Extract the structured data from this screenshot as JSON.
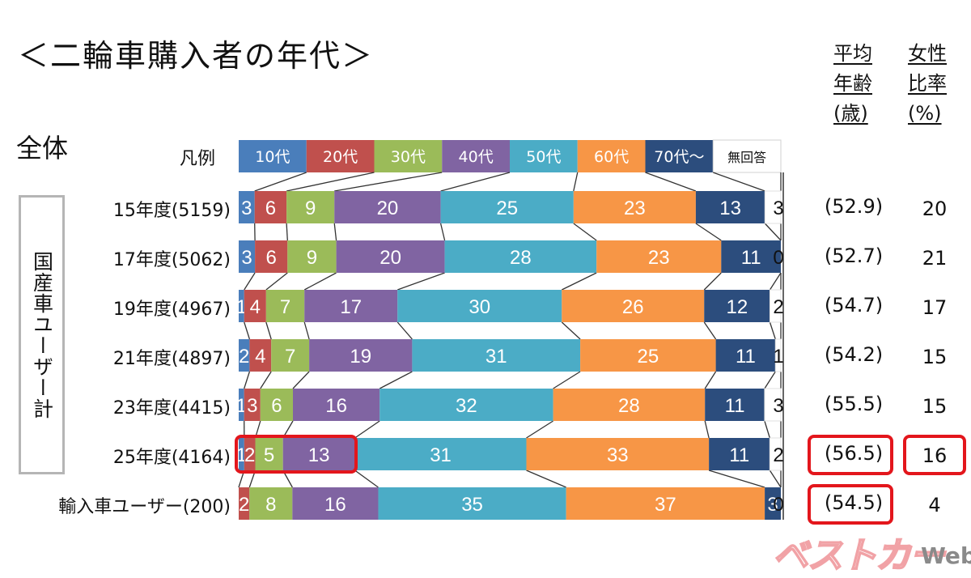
{
  "title": "＜二輪車購入者の年代＞",
  "overall_label": "全体",
  "legend_label": "凡例",
  "group_label": "国産車ユーザー計",
  "headers": {
    "avg_age": [
      "平均",
      "年齢",
      "(歳)"
    ],
    "female_ratio": [
      "女性",
      "比率",
      "(%)"
    ]
  },
  "colors": {
    "10代": "#4a7ebb",
    "20代": "#c0504d",
    "30代": "#9bbb59",
    "40代": "#8064a2",
    "50代": "#4bacc6",
    "60代": "#f79646",
    "70代～": "#2c4d7d",
    "無回答": "#ffffff",
    "highlight": "#e3161c"
  },
  "chart_data": {
    "type": "bar",
    "orientation": "horizontal-stacked-100",
    "title": "＜二輪車購入者の年代＞",
    "legend": [
      "10代",
      "20代",
      "30代",
      "40代",
      "50代",
      "60代",
      "70代～",
      "無回答"
    ],
    "legend_position": "top",
    "categories": [
      "15年度(5159)",
      "17年度(5062)",
      "19年度(4967)",
      "21年度(4897)",
      "23年度(4415)",
      "25年度(4164)",
      "輸入車ユーザー(200)"
    ],
    "series": [
      {
        "name": "10代",
        "values": [
          3,
          3,
          1,
          2,
          1,
          1,
          0
        ]
      },
      {
        "name": "20代",
        "values": [
          6,
          6,
          4,
          4,
          3,
          2,
          2
        ]
      },
      {
        "name": "30代",
        "values": [
          9,
          9,
          7,
          7,
          6,
          5,
          8
        ]
      },
      {
        "name": "40代",
        "values": [
          20,
          20,
          17,
          19,
          16,
          13,
          16
        ]
      },
      {
        "name": "50代",
        "values": [
          25,
          28,
          30,
          31,
          32,
          31,
          35
        ]
      },
      {
        "name": "60代",
        "values": [
          23,
          23,
          26,
          25,
          28,
          33,
          37
        ]
      },
      {
        "name": "70代～",
        "values": [
          13,
          11,
          12,
          11,
          11,
          11,
          3
        ]
      },
      {
        "name": "無回答",
        "values": [
          3,
          0,
          2,
          1,
          3,
          2,
          0
        ]
      }
    ],
    "value_labels": [
      [
        "3",
        "6",
        "9",
        "20",
        "25",
        "23",
        "13",
        "3"
      ],
      [
        "3",
        "6",
        "9",
        "20",
        "28",
        "23",
        "11",
        "0"
      ],
      [
        "1",
        "4",
        "7",
        "17",
        "30",
        "26",
        "12",
        "2"
      ],
      [
        "2",
        "4",
        "7",
        "19",
        "31",
        "25",
        "11",
        "1"
      ],
      [
        "1",
        "3",
        "6",
        "16",
        "32",
        "28",
        "11",
        "3"
      ],
      [
        "1",
        "2",
        "5",
        "13",
        "31",
        "33",
        "11",
        "2"
      ],
      [
        "0",
        "2",
        "8",
        "16",
        "35",
        "37",
        "3",
        "0"
      ]
    ],
    "avg_age": [
      "(52.9)",
      "(52.7)",
      "(54.7)",
      "(54.2)",
      "(55.5)",
      "(56.5)",
      "(54.5)"
    ],
    "female_ratio": [
      "20",
      "21",
      "17",
      "15",
      "15",
      "16",
      "4"
    ],
    "highlighted": {
      "bar_segments": {
        "row": 5,
        "series": [
          "10代",
          "20代",
          "30代",
          "40代"
        ]
      },
      "avg_age_rows": [
        5,
        6
      ],
      "female_ratio_rows": [
        5
      ]
    },
    "xlim": [
      0,
      100
    ],
    "grid": false
  },
  "watermark": {
    "brand": "ベストカー",
    "suffix": "Web"
  }
}
